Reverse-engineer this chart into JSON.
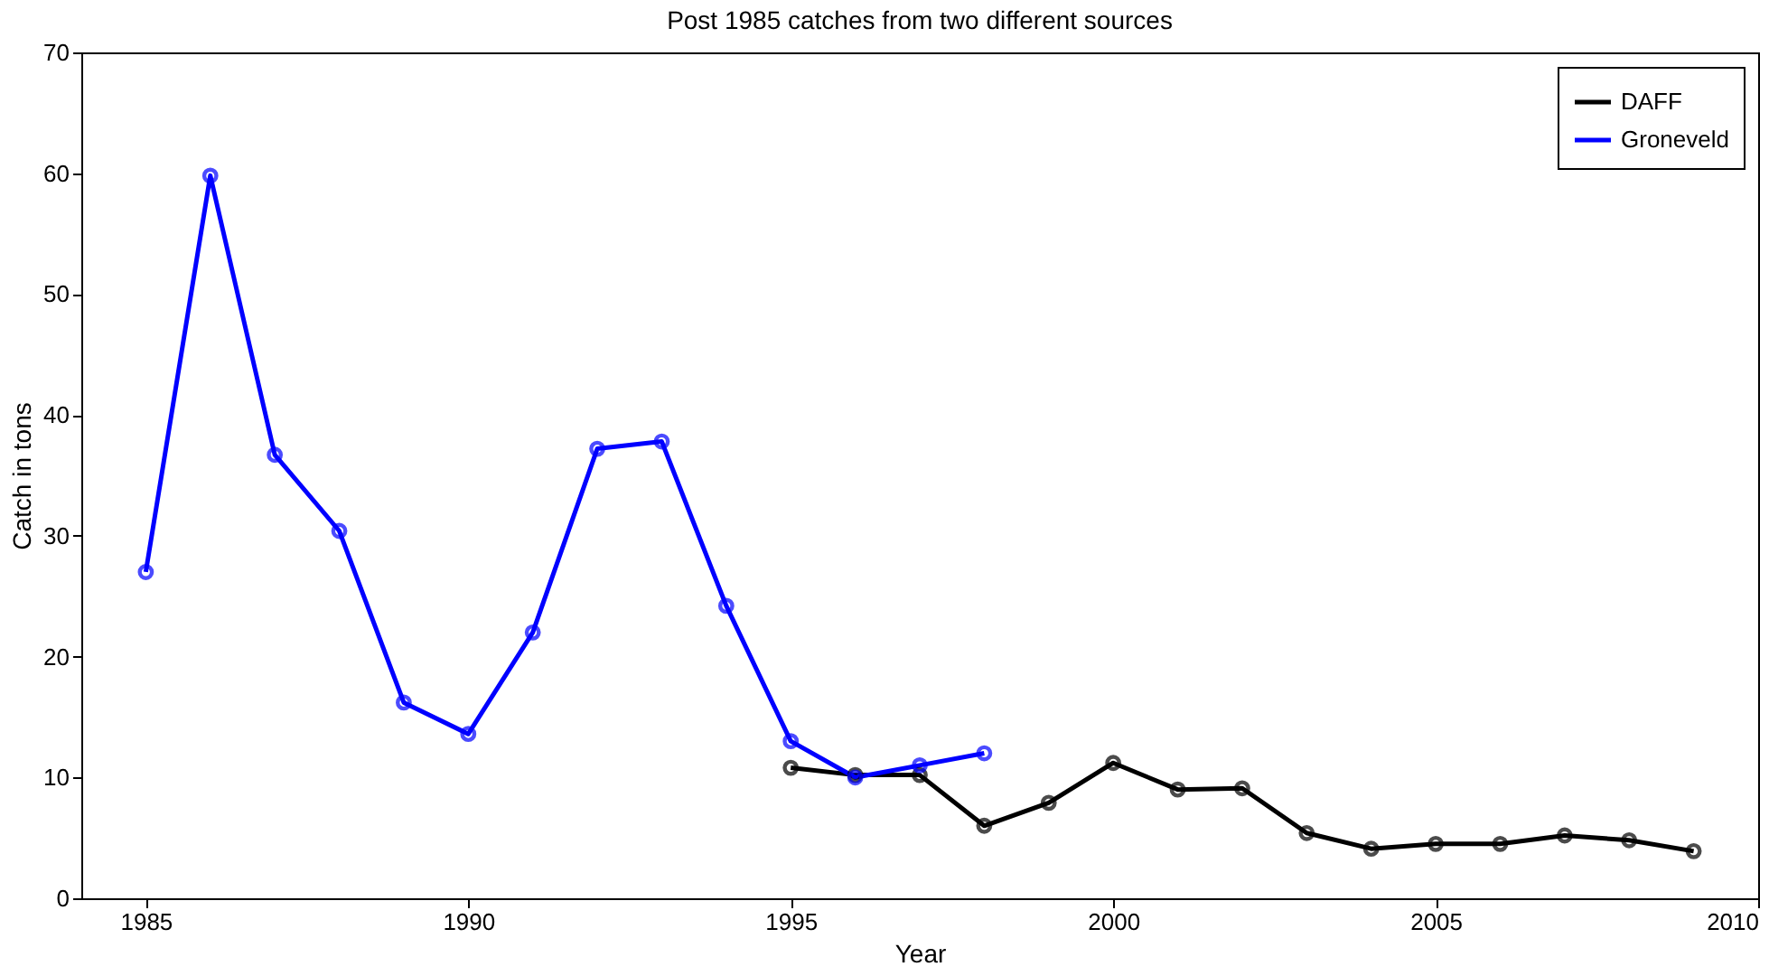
{
  "chart_data": {
    "type": "line",
    "title": "Post 1985 catches from two different sources",
    "xlabel": "Year",
    "ylabel": "Catch in tons",
    "xlim": [
      1984,
      2010
    ],
    "xticks": [
      1985,
      1990,
      1995,
      2000,
      2005,
      2010
    ],
    "ylim": [
      0,
      70
    ],
    "yticks": [
      0,
      10,
      20,
      30,
      40,
      50,
      60,
      70
    ],
    "grid": false,
    "legend": "top right",
    "marker": "circle",
    "line_style": "solid",
    "series": [
      {
        "name": "DAFF",
        "color": "#000000",
        "x": [
          1995,
          1996,
          1997,
          1998,
          1999,
          2000,
          2001,
          2002,
          2003,
          2004,
          2005,
          2006,
          2007,
          2008,
          2009
        ],
        "values": [
          10.8,
          10.2,
          10.2,
          6,
          7.9,
          11.2,
          9,
          9.1,
          5.4,
          4.1,
          4.5,
          4.5,
          5.2,
          4.8,
          3.9
        ]
      },
      {
        "name": "Groneveld",
        "color": "#0000ff",
        "x": [
          1985,
          1986,
          1987,
          1988,
          1989,
          1990,
          1991,
          1992,
          1993,
          1994,
          1995,
          1996,
          1997,
          1998
        ],
        "values": [
          27,
          59.8,
          36.7,
          30.4,
          16.2,
          13.6,
          22,
          37.2,
          37.8,
          24.2,
          13,
          10,
          11,
          12
        ]
      }
    ]
  }
}
